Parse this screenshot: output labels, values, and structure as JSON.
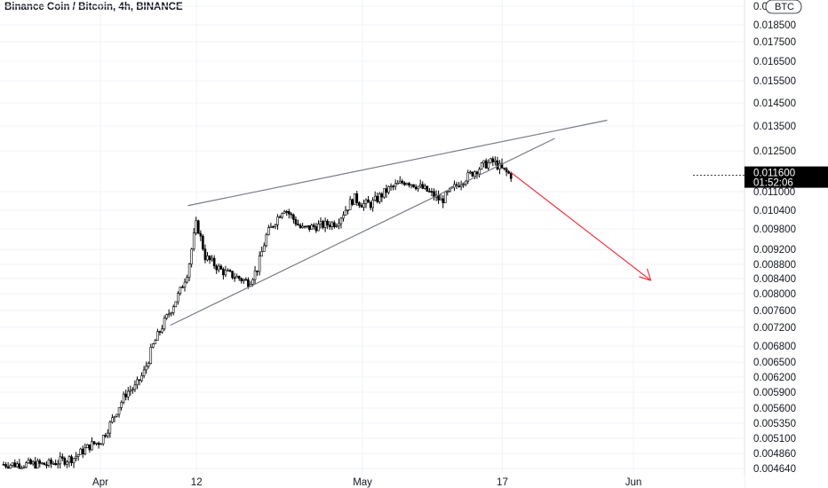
{
  "chart_data": {
    "type": "candlestick",
    "title": "Binance Coin / Bitcoin, 4h, BINANCE",
    "currency_label": "BTC",
    "price_axis_ticks": [
      "0.019500",
      "0.018500",
      "0.017500",
      "0.016500",
      "0.015500",
      "0.014500",
      "0.013500",
      "0.012500",
      "0.011000",
      "0.010400",
      "0.009800",
      "0.009200",
      "0.008800",
      "0.008400",
      "0.008000",
      "0.007600",
      "0.007200",
      "0.006800",
      "0.006500",
      "0.006200",
      "0.005900",
      "0.005600",
      "0.005350",
      "0.005100",
      "0.004860",
      "0.004640"
    ],
    "time_axis_labels": [
      "Apr",
      "12",
      "May",
      "17",
      "Jun"
    ],
    "current_price": "0.011600",
    "countdown": "01:52:06",
    "close_path": [
      [
        "Mar 26",
        0.0047
      ],
      [
        "Mar 29",
        0.0048
      ],
      [
        "Mar 31",
        0.005
      ],
      [
        "Apr 1",
        0.00505
      ],
      [
        "Apr 2",
        0.0053
      ],
      [
        "Apr 3",
        0.0056
      ],
      [
        "Apr 4",
        0.0059
      ],
      [
        "Apr 5",
        0.006
      ],
      [
        "Apr 6",
        0.0063
      ],
      [
        "Apr 7",
        0.0068
      ],
      [
        "Apr 8",
        0.0072
      ],
      [
        "Apr 9",
        0.0076
      ],
      [
        "Apr 10",
        0.008
      ],
      [
        "Apr 11",
        0.0086
      ],
      [
        "Apr 12",
        0.01
      ],
      [
        "Apr 13",
        0.009
      ],
      [
        "Apr 15",
        0.0086
      ],
      [
        "Apr 17",
        0.0084
      ],
      [
        "Apr 18",
        0.0083
      ],
      [
        "Apr 19",
        0.0087
      ],
      [
        "Apr 20",
        0.0096
      ],
      [
        "Apr 22",
        0.0105
      ],
      [
        "Apr 24",
        0.0098
      ],
      [
        "Apr 26",
        0.0099
      ],
      [
        "Apr 28",
        0.01
      ],
      [
        "Apr 30",
        0.0108
      ],
      [
        "May 1",
        0.0106
      ],
      [
        "May 2",
        0.0106
      ],
      [
        "May 4",
        0.0111
      ],
      [
        "May 6",
        0.0114
      ],
      [
        "May 8",
        0.0111
      ],
      [
        "May 10",
        0.0107
      ],
      [
        "May 12",
        0.0113
      ],
      [
        "May 14",
        0.0118
      ],
      [
        "May 15",
        0.012
      ],
      [
        "May 16",
        0.0121
      ],
      [
        "May 17",
        0.0118
      ],
      [
        "May 18",
        0.0116
      ]
    ],
    "drawings": [
      {
        "name": "upper-trendline",
        "color": "#787b86",
        "from": [
          "Apr 11",
          0.01055
        ],
        "to": [
          "May 29",
          0.01375
        ]
      },
      {
        "name": "lower-trendline",
        "color": "#787b86",
        "from": [
          "Apr 9",
          0.00725
        ],
        "to": [
          "May 23",
          0.013
        ]
      },
      {
        "name": "projection-arrow",
        "color": "#f23645",
        "from": [
          "May 18",
          0.0117
        ],
        "to": [
          "Jun 3",
          0.00835
        ]
      }
    ],
    "candle_up_color": "#ffffff",
    "candle_down_color": "#000000",
    "price_label_bg": "#000000",
    "grid": true,
    "legend": "none"
  }
}
